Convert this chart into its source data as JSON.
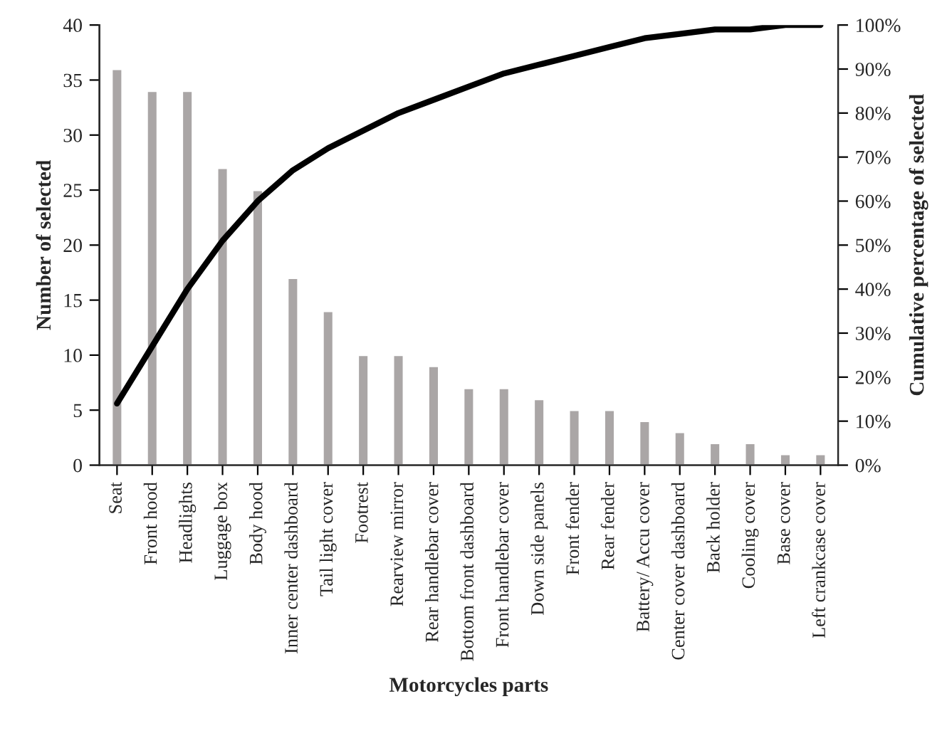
{
  "chart_data": {
    "type": "bar",
    "xlabel": "Motorcycles parts",
    "ylabel": "Number of selected",
    "y2label": "Cumulative percentage of selected",
    "categories": [
      "Seat",
      "Front hood",
      "Headlights",
      "Luggage box",
      "Body hood",
      "Inner center dashboard",
      "Tail light cover",
      "Footrest",
      "Rearview mirror",
      "Rear handlebar cover",
      "Bottom front dashboard",
      "Front handlebar cover",
      "Down side panels",
      "Front fender",
      "Rear fender",
      "Battery/ Accu cover",
      "Center cover dashboard",
      "Back holder",
      "Cooling cover",
      "Base cover",
      "Left crankcase cover"
    ],
    "series": [
      {
        "color": "#aaa6a6",
        "values": [
          36,
          34,
          34,
          27,
          25,
          17,
          14,
          10,
          10,
          9,
          7,
          7,
          6,
          5,
          5,
          4,
          3,
          2,
          2,
          1,
          1
        ]
      },
      {
        "type": "line",
        "axis": "y2",
        "color": "#000000",
        "values": [
          14,
          27,
          40,
          51,
          60,
          67,
          72,
          76,
          80,
          83,
          86,
          89,
          91,
          93,
          95,
          97,
          98,
          99,
          99,
          100,
          100
        ]
      }
    ],
    "ylim": [
      0,
      40
    ],
    "yticks": [
      0,
      5,
      10,
      15,
      20,
      25,
      30,
      35,
      40
    ],
    "y2lim": [
      0,
      100
    ],
    "y2ticks": [
      {
        "value": 0,
        "label": "0%"
      },
      {
        "value": 10,
        "label": "10%"
      },
      {
        "value": 20,
        "label": "20%"
      },
      {
        "value": 30,
        "label": "30%"
      },
      {
        "value": 40,
        "label": "40%"
      },
      {
        "value": 50,
        "label": "50%"
      },
      {
        "value": 60,
        "label": "60%"
      },
      {
        "value": 70,
        "label": "70%"
      },
      {
        "value": 80,
        "label": "80%"
      },
      {
        "value": 90,
        "label": "90%"
      },
      {
        "value": 100,
        "label": "100%"
      }
    ],
    "grid": false,
    "legend": false,
    "marker": "none",
    "line_style": "solid"
  }
}
